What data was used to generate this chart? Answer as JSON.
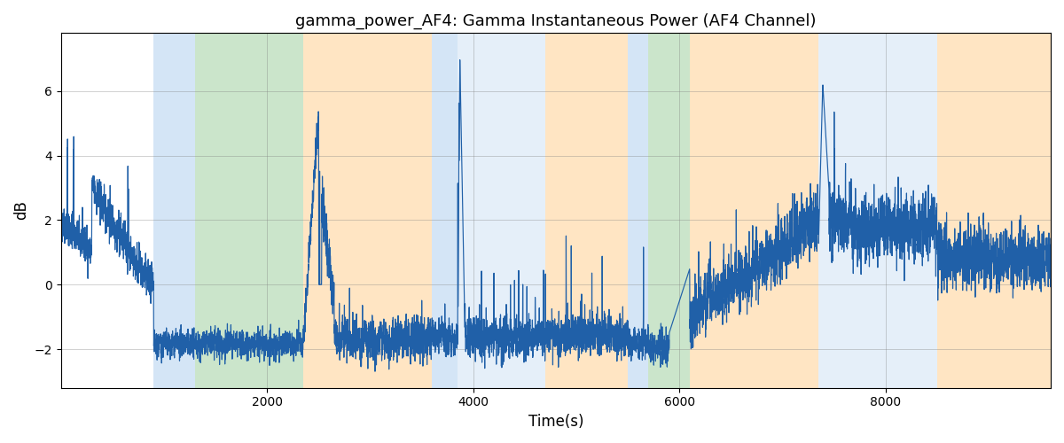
{
  "title": "gamma_power_AF4: Gamma Instantaneous Power (AF4 Channel)",
  "xlabel": "Time(s)",
  "ylabel": "dB",
  "xlim": [
    0,
    9600
  ],
  "ylim": [
    -3.2,
    7.8
  ],
  "yticks": [
    -2,
    0,
    2,
    4,
    6
  ],
  "xticks": [
    2000,
    4000,
    6000,
    8000
  ],
  "line_color": "#2060a8",
  "line_width": 0.85,
  "background_color": "#ffffff",
  "figsize": [
    12,
    5
  ],
  "dpi": 100,
  "title_fontsize": 13,
  "bands": [
    {
      "xmin": 900,
      "xmax": 1300,
      "color": "#aaccee",
      "alpha": 0.5
    },
    {
      "xmin": 1300,
      "xmax": 2350,
      "color": "#99cc99",
      "alpha": 0.5
    },
    {
      "xmin": 2350,
      "xmax": 3600,
      "color": "#ffcc88",
      "alpha": 0.5
    },
    {
      "xmin": 3600,
      "xmax": 3850,
      "color": "#aaccee",
      "alpha": 0.5
    },
    {
      "xmin": 3850,
      "xmax": 4700,
      "color": "#aaccee",
      "alpha": 0.3
    },
    {
      "xmin": 4700,
      "xmax": 5500,
      "color": "#ffcc88",
      "alpha": 0.5
    },
    {
      "xmin": 5500,
      "xmax": 5700,
      "color": "#aaccee",
      "alpha": 0.5
    },
    {
      "xmin": 5700,
      "xmax": 6100,
      "color": "#99cc99",
      "alpha": 0.5
    },
    {
      "xmin": 6100,
      "xmax": 7350,
      "color": "#ffcc88",
      "alpha": 0.5
    },
    {
      "xmin": 7350,
      "xmax": 8500,
      "color": "#aaccee",
      "alpha": 0.3
    },
    {
      "xmin": 8500,
      "xmax": 9600,
      "color": "#ffcc88",
      "alpha": 0.5
    }
  ],
  "seed": 42
}
